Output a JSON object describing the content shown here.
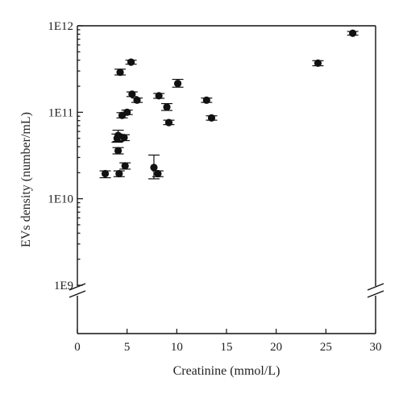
{
  "chart_data": {
    "type": "scatter",
    "title": "",
    "xlabel": "Creatinine (mmol/L)",
    "ylabel": "EVs density (number/mL)",
    "xlim": [
      0,
      30
    ],
    "x_ticks": [
      0,
      5,
      10,
      15,
      20,
      25,
      30
    ],
    "y_scale": "log",
    "y_ticks": [
      {
        "value": 1000000000.0,
        "label": "1E9"
      },
      {
        "value": 10000000000.0,
        "label": "1E10"
      },
      {
        "value": 100000000000.0,
        "label": "1E11"
      },
      {
        "value": 1000000000000.0,
        "label": "1E12"
      }
    ],
    "ylim": [
      1000000000.0,
      1000000000000.0
    ],
    "axis_break": "y-axis below 1E9",
    "grid": false,
    "points": [
      {
        "x": 2.8,
        "y": 19500000000.0,
        "err_low": 17500000000.0,
        "err_high": 21000000000.0
      },
      {
        "x": 4.2,
        "y": 19500000000.0,
        "err_low": 18000000000.0,
        "err_high": 21000000000.0
      },
      {
        "x": 4.8,
        "y": 24000000000.0,
        "err_low": 22000000000.0,
        "err_high": 26000000000.0
      },
      {
        "x": 7.7,
        "y": 23000000000.0,
        "err_low": 17000000000.0,
        "err_high": 32000000000.0
      },
      {
        "x": 8.1,
        "y": 19500000000.0,
        "err_low": 18000000000.0,
        "err_high": 21000000000.0
      },
      {
        "x": 4.1,
        "y": 36000000000.0,
        "err_low": 33000000000.0,
        "err_high": 39000000000.0
      },
      {
        "x": 4.0,
        "y": 50000000000.0,
        "err_low": 45000000000.0,
        "err_high": 56000000000.0
      },
      {
        "x": 4.1,
        "y": 54000000000.0,
        "err_low": 46000000000.0,
        "err_high": 62000000000.0
      },
      {
        "x": 4.7,
        "y": 51000000000.0,
        "err_low": 47000000000.0,
        "err_high": 55000000000.0
      },
      {
        "x": 4.5,
        "y": 92000000000.0,
        "err_low": 86000000000.0,
        "err_high": 99000000000.0
      },
      {
        "x": 5.0,
        "y": 100000000000.0,
        "err_low": 94000000000.0,
        "err_high": 106000000000.0
      },
      {
        "x": 5.5,
        "y": 162000000000.0,
        "err_low": 152000000000.0,
        "err_high": 172000000000.0
      },
      {
        "x": 6.0,
        "y": 138000000000.0,
        "err_low": 130000000000.0,
        "err_high": 146000000000.0
      },
      {
        "x": 8.2,
        "y": 155000000000.0,
        "err_low": 145000000000.0,
        "err_high": 165000000000.0
      },
      {
        "x": 9.0,
        "y": 115000000000.0,
        "err_low": 105000000000.0,
        "err_high": 126000000000.0
      },
      {
        "x": 9.2,
        "y": 76000000000.0,
        "err_low": 72000000000.0,
        "err_high": 81000000000.0
      },
      {
        "x": 10.1,
        "y": 215000000000.0,
        "err_low": 195000000000.0,
        "err_high": 240000000000.0
      },
      {
        "x": 13.0,
        "y": 138000000000.0,
        "err_low": 130000000000.0,
        "err_high": 146000000000.0
      },
      {
        "x": 13.5,
        "y": 86000000000.0,
        "err_low": 81000000000.0,
        "err_high": 91000000000.0
      },
      {
        "x": 4.3,
        "y": 290000000000.0,
        "err_low": 270000000000.0,
        "err_high": 315000000000.0
      },
      {
        "x": 5.4,
        "y": 380000000000.0,
        "err_low": 360000000000.0,
        "err_high": 400000000000.0
      },
      {
        "x": 24.2,
        "y": 370000000000.0,
        "err_low": 345000000000.0,
        "err_high": 395000000000.0
      },
      {
        "x": 27.7,
        "y": 820000000000.0,
        "err_low": 780000000000.0,
        "err_high": 860000000000.0
      }
    ]
  }
}
